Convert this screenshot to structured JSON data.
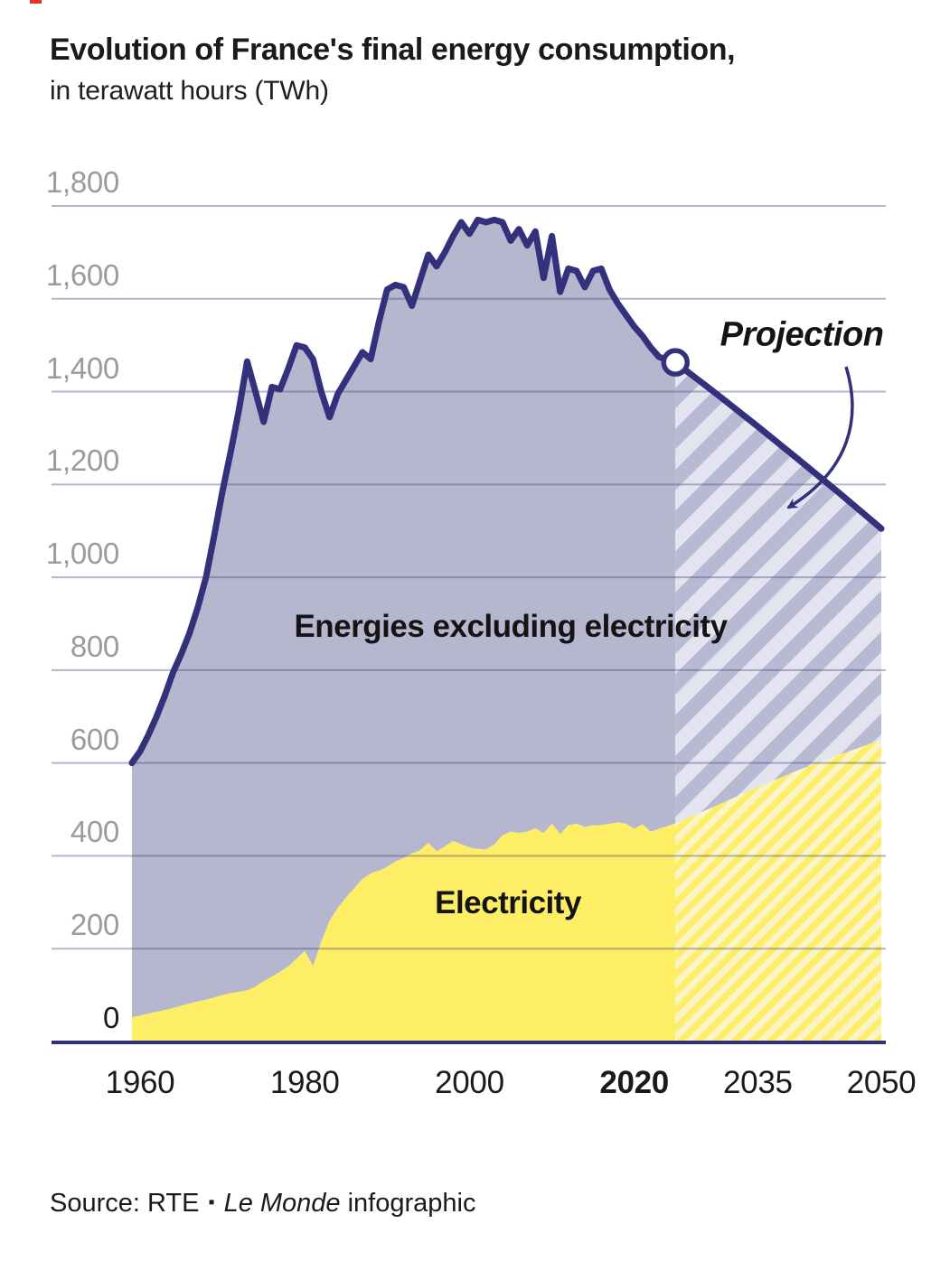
{
  "page": {
    "title": "Evolution of France's final energy consumption,",
    "subtitle": "in terawatt hours (TWh)",
    "brand_mark_color": "#e4342a",
    "source_prefix": "Source: RTE",
    "source_separator": "▪",
    "source_publisher": "Le Monde",
    "source_suffix": "infographic"
  },
  "chart_data": {
    "type": "area",
    "stacked": true,
    "title": "Evolution of France's final energy consumption",
    "subtitle": "in terawatt hours (TWh)",
    "unit": "TWh",
    "xlim": [
      1959,
      2050
    ],
    "ylim": [
      0,
      1800
    ],
    "grid": true,
    "note": "Stacked area: yellow = electricity, purple band above = energies excluding electricity; top navy line = total final energy consumption. Hatched section from 2025 onward is the RTE projection.",
    "projection_start_year": 2025,
    "labels": {
      "other_energies": "Energies excluding electricity",
      "electricity": "Electricity",
      "projection": "Projection"
    },
    "colors": {
      "navy": "#33317b",
      "purple": "#b6b6ce",
      "purple_hatch_dark": "#b9b9d4",
      "purple_hatch_light": "#e4e4f1",
      "yellow": "#fdee65",
      "yellow_hatch_light": "#faf5c9",
      "grid": "rgba(70,70,125,0.40)",
      "tick_gray": "#9b9b9b",
      "tick_dark": "#1a1a1a"
    },
    "y_ticks": [
      {
        "value": 0,
        "label": "0"
      },
      {
        "value": 200,
        "label": "200"
      },
      {
        "value": 400,
        "label": "400"
      },
      {
        "value": 600,
        "label": "600"
      },
      {
        "value": 800,
        "label": "800"
      },
      {
        "value": 1000,
        "label": "1,000"
      },
      {
        "value": 1200,
        "label": "1,200"
      },
      {
        "value": 1400,
        "label": "1,400"
      },
      {
        "value": 1600,
        "label": "1,600"
      },
      {
        "value": 1800,
        "label": "1,800"
      }
    ],
    "x_ticks": [
      {
        "year": 1960,
        "label": "1960",
        "bold": false
      },
      {
        "year": 1980,
        "label": "1980",
        "bold": false
      },
      {
        "year": 2000,
        "label": "2000",
        "bold": false
      },
      {
        "year": 2020,
        "label": "2020",
        "bold": true
      },
      {
        "year": 2035,
        "label": "2035",
        "bold": false
      },
      {
        "year": 2050,
        "label": "2050",
        "bold": false
      }
    ],
    "series": [
      {
        "name": "Total final energy consumption (historical)",
        "points": [
          [
            1959,
            600
          ],
          [
            1960,
            625
          ],
          [
            1961,
            660
          ],
          [
            1962,
            700
          ],
          [
            1963,
            745
          ],
          [
            1964,
            795
          ],
          [
            1965,
            835
          ],
          [
            1966,
            880
          ],
          [
            1967,
            935
          ],
          [
            1968,
            1000
          ],
          [
            1969,
            1090
          ],
          [
            1970,
            1185
          ],
          [
            1971,
            1270
          ],
          [
            1972,
            1360
          ],
          [
            1973,
            1465
          ],
          [
            1974,
            1400
          ],
          [
            1975,
            1335
          ],
          [
            1976,
            1410
          ],
          [
            1977,
            1405
          ],
          [
            1978,
            1450
          ],
          [
            1979,
            1500
          ],
          [
            1980,
            1495
          ],
          [
            1981,
            1470
          ],
          [
            1982,
            1400
          ],
          [
            1983,
            1345
          ],
          [
            1984,
            1395
          ],
          [
            1985,
            1425
          ],
          [
            1986,
            1455
          ],
          [
            1987,
            1485
          ],
          [
            1988,
            1470
          ],
          [
            1989,
            1550
          ],
          [
            1990,
            1620
          ],
          [
            1991,
            1630
          ],
          [
            1992,
            1625
          ],
          [
            1993,
            1585
          ],
          [
            1994,
            1640
          ],
          [
            1995,
            1695
          ],
          [
            1996,
            1670
          ],
          [
            1997,
            1700
          ],
          [
            1998,
            1735
          ],
          [
            1999,
            1765
          ],
          [
            2000,
            1740
          ],
          [
            2001,
            1770
          ],
          [
            2002,
            1765
          ],
          [
            2003,
            1770
          ],
          [
            2004,
            1765
          ],
          [
            2005,
            1725
          ],
          [
            2006,
            1750
          ],
          [
            2007,
            1715
          ],
          [
            2008,
            1745
          ],
          [
            2009,
            1645
          ],
          [
            2010,
            1735
          ],
          [
            2011,
            1615
          ],
          [
            2012,
            1665
          ],
          [
            2013,
            1660
          ],
          [
            2014,
            1625
          ],
          [
            2015,
            1660
          ],
          [
            2016,
            1665
          ],
          [
            2017,
            1620
          ],
          [
            2018,
            1590
          ],
          [
            2019,
            1565
          ],
          [
            2020,
            1540
          ],
          [
            2021,
            1520
          ],
          [
            2022,
            1495
          ],
          [
            2023,
            1475
          ],
          [
            2024,
            1468
          ],
          [
            2025,
            1463
          ]
        ]
      },
      {
        "name": "Electricity (historical)",
        "points": [
          [
            1959,
            52
          ],
          [
            1960,
            56
          ],
          [
            1961,
            60
          ],
          [
            1962,
            64
          ],
          [
            1963,
            68
          ],
          [
            1964,
            72
          ],
          [
            1965,
            77
          ],
          [
            1966,
            82
          ],
          [
            1967,
            86
          ],
          [
            1968,
            90
          ],
          [
            1969,
            95
          ],
          [
            1970,
            100
          ],
          [
            1971,
            104
          ],
          [
            1972,
            107
          ],
          [
            1973,
            110
          ],
          [
            1974,
            118
          ],
          [
            1975,
            130
          ],
          [
            1976,
            140
          ],
          [
            1977,
            150
          ],
          [
            1978,
            162
          ],
          [
            1979,
            178
          ],
          [
            1980,
            195
          ],
          [
            1981,
            162
          ],
          [
            1982,
            215
          ],
          [
            1983,
            260
          ],
          [
            1984,
            288
          ],
          [
            1985,
            310
          ],
          [
            1986,
            330
          ],
          [
            1987,
            350
          ],
          [
            1988,
            362
          ],
          [
            1989,
            368
          ],
          [
            1990,
            376
          ],
          [
            1991,
            388
          ],
          [
            1992,
            395
          ],
          [
            1993,
            405
          ],
          [
            1994,
            412
          ],
          [
            1995,
            428
          ],
          [
            1996,
            410
          ],
          [
            1997,
            420
          ],
          [
            1998,
            432
          ],
          [
            1999,
            425
          ],
          [
            2000,
            418
          ],
          [
            2001,
            415
          ],
          [
            2002,
            414
          ],
          [
            2003,
            424
          ],
          [
            2004,
            444
          ],
          [
            2005,
            452
          ],
          [
            2006,
            449
          ],
          [
            2007,
            452
          ],
          [
            2008,
            459
          ],
          [
            2009,
            449
          ],
          [
            2010,
            469
          ],
          [
            2011,
            447
          ],
          [
            2012,
            466
          ],
          [
            2013,
            469
          ],
          [
            2014,
            462
          ],
          [
            2015,
            466
          ],
          [
            2016,
            466
          ],
          [
            2017,
            469
          ],
          [
            2018,
            472
          ],
          [
            2019,
            469
          ],
          [
            2020,
            458
          ],
          [
            2021,
            468
          ],
          [
            2022,
            452
          ],
          [
            2023,
            458
          ],
          [
            2024,
            464
          ],
          [
            2025,
            470
          ]
        ]
      },
      {
        "name": "Total final energy consumption (projection)",
        "points": [
          [
            2025,
            1463
          ],
          [
            2030,
            1395
          ],
          [
            2035,
            1325
          ],
          [
            2040,
            1253
          ],
          [
            2045,
            1180
          ],
          [
            2050,
            1105
          ]
        ]
      },
      {
        "name": "Electricity (projection)",
        "points": [
          [
            2025,
            470
          ],
          [
            2030,
            508
          ],
          [
            2035,
            548
          ],
          [
            2040,
            585
          ],
          [
            2045,
            618
          ],
          [
            2050,
            650
          ]
        ]
      }
    ],
    "annotations": {
      "projection_marker": {
        "year": 2025,
        "value": 1463
      }
    }
  }
}
